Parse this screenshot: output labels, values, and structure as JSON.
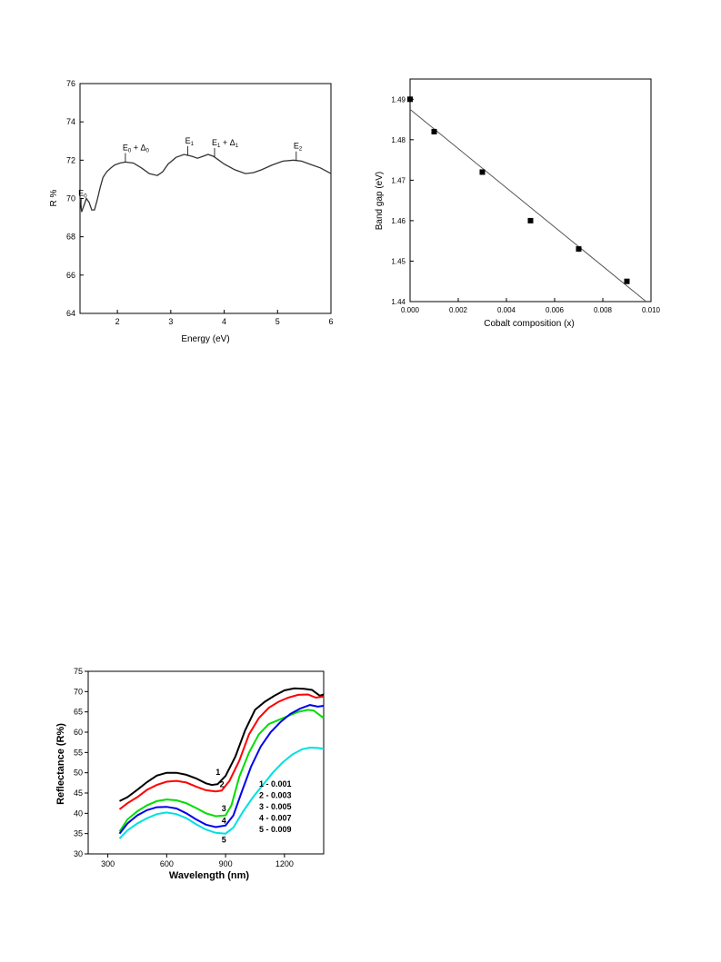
{
  "chart_data": [
    {
      "type": "line",
      "xlabel": "Energy (eV)",
      "ylabel": "R %",
      "xlim": [
        1.3,
        6
      ],
      "ylim": [
        64,
        76
      ],
      "xticks": [
        2,
        3,
        4,
        5,
        6
      ],
      "yticks": [
        64,
        66,
        68,
        70,
        72,
        74,
        76
      ],
      "grid": false,
      "series": [
        {
          "x": [
            1.3,
            1.33,
            1.37,
            1.42,
            1.47,
            1.52,
            1.57,
            1.62,
            1.68,
            1.73,
            1.8,
            1.88,
            1.95,
            2.05,
            2.15,
            2.3,
            2.45,
            2.6,
            2.75,
            2.85,
            2.95,
            3.1,
            3.25,
            3.4,
            3.5,
            3.6,
            3.7,
            3.8,
            3.9,
            4.0,
            4.2,
            4.4,
            4.55,
            4.7,
            4.9,
            5.1,
            5.3,
            5.45,
            5.6,
            5.8,
            6.0
          ],
          "values": [
            70.0,
            69.3,
            69.6,
            70.0,
            69.8,
            69.4,
            69.4,
            69.9,
            70.6,
            71.1,
            71.4,
            71.6,
            71.75,
            71.85,
            71.9,
            71.85,
            71.6,
            71.3,
            71.2,
            71.4,
            71.8,
            72.15,
            72.3,
            72.2,
            72.1,
            72.2,
            72.3,
            72.2,
            72.0,
            71.8,
            71.5,
            71.3,
            71.35,
            71.5,
            71.75,
            71.95,
            72.0,
            71.95,
            71.8,
            71.6,
            71.3
          ]
        }
      ],
      "annotations": [
        {
          "main": "E",
          "sub": "0",
          "x": 1.32
        },
        {
          "main": "E",
          "sub": "0",
          "suffix": " + Δ",
          "sub2": "0",
          "x": 2.15
        },
        {
          "main": "E",
          "sub": "1",
          "x": 3.32
        },
        {
          "main": "E",
          "sub": "1",
          "suffix": " + Δ",
          "sub2": "1",
          "x": 3.82
        },
        {
          "main": "E",
          "sub": "2",
          "x": 5.35
        }
      ]
    },
    {
      "type": "scatter",
      "xlabel": "Cobalt composition (x)",
      "ylabel": "Band gap (eV)",
      "xlim": [
        0,
        0.01
      ],
      "ylim": [
        1.44,
        1.495
      ],
      "xticks": [
        "0.000",
        "0.002",
        "0.004",
        "0.006",
        "0.008",
        "0.010"
      ],
      "yticks": [
        "1.44",
        "1.45",
        "1.46",
        "1.47",
        "1.48",
        "1.49"
      ],
      "grid": false,
      "points": [
        {
          "x": 0.0,
          "y": 1.49
        },
        {
          "x": 0.001,
          "y": 1.482
        },
        {
          "x": 0.003,
          "y": 1.472
        },
        {
          "x": 0.005,
          "y": 1.46
        },
        {
          "x": 0.007,
          "y": 1.453
        },
        {
          "x": 0.009,
          "y": 1.445
        }
      ],
      "fit": {
        "x": [
          0.0,
          0.0098
        ],
        "y": [
          1.4875,
          1.44
        ]
      }
    },
    {
      "type": "line",
      "xlabel": "Wavelength (nm)",
      "ylabel": "Reflectance (R%)",
      "xlim": [
        200,
        1400
      ],
      "ylim": [
        30,
        75
      ],
      "xticks": [
        300,
        600,
        900,
        1200
      ],
      "yticks": [
        30,
        35,
        40,
        45,
        50,
        55,
        60,
        65,
        70,
        75
      ],
      "grid": false,
      "legend": {
        "placement": "right",
        "entries": [
          "1 -  0.001",
          "2 -  0.003",
          "3 -  0.005",
          "4 -  0.007",
          "5 -  0.009"
        ]
      },
      "series": [
        {
          "name": "1",
          "color": "#000000",
          "label_point": [
            850,
            49.5
          ],
          "x": [
            360,
            400,
            450,
            500,
            550,
            600,
            650,
            700,
            750,
            800,
            830,
            860,
            900,
            950,
            1000,
            1050,
            1100,
            1150,
            1200,
            1250,
            1300,
            1340,
            1380,
            1400
          ],
          "values": [
            43,
            44,
            45.8,
            47.7,
            49.3,
            50,
            50,
            49.5,
            48.6,
            47.4,
            47,
            47.2,
            49.2,
            54,
            60.5,
            65.5,
            67.5,
            69,
            70.3,
            70.8,
            70.7,
            70.4,
            69,
            69.3
          ]
        },
        {
          "name": "2",
          "color": "#ff0000",
          "label_point": [
            870,
            46.5
          ],
          "x": [
            360,
            400,
            450,
            500,
            550,
            600,
            650,
            700,
            750,
            800,
            850,
            880,
            920,
            970,
            1020,
            1070,
            1120,
            1170,
            1220,
            1270,
            1320,
            1360,
            1400
          ],
          "values": [
            41,
            42.5,
            44,
            45.8,
            47,
            47.8,
            48,
            47.6,
            46.6,
            45.7,
            45.4,
            45.6,
            48,
            53,
            59.5,
            63.5,
            66,
            67.5,
            68.5,
            69.2,
            69.3,
            68.5,
            68.8
          ]
        },
        {
          "name": "3",
          "color": "#00dd00",
          "label_point": [
            880,
            40.5
          ],
          "x": [
            360,
            400,
            450,
            500,
            550,
            600,
            650,
            700,
            750,
            800,
            850,
            900,
            930,
            970,
            1020,
            1070,
            1120,
            1170,
            1220,
            1270,
            1320,
            1350,
            1400
          ],
          "values": [
            35.5,
            38.5,
            40.5,
            42,
            43,
            43.4,
            43.2,
            42.5,
            41.3,
            40,
            39.3,
            39.5,
            42,
            49,
            55,
            59.5,
            62,
            63,
            64,
            65,
            65.5,
            65.3,
            63.5
          ]
        },
        {
          "name": "4",
          "color": "#0000ee",
          "label_point": [
            880,
            37.5
          ],
          "x": [
            360,
            400,
            450,
            500,
            550,
            600,
            650,
            700,
            750,
            800,
            850,
            900,
            940,
            980,
            1030,
            1080,
            1130,
            1180,
            1230,
            1280,
            1330,
            1370,
            1400
          ],
          "values": [
            35,
            37.5,
            39.5,
            40.8,
            41.5,
            41.6,
            41.2,
            40,
            38.5,
            37.2,
            36.6,
            37,
            39.5,
            45,
            51.5,
            56.5,
            60,
            62.5,
            64.5,
            65.8,
            66.7,
            66.3,
            66.5
          ]
        },
        {
          "name": "5",
          "color": "#00e0e0",
          "label_point": [
            880,
            32.8
          ],
          "x": [
            360,
            400,
            450,
            500,
            550,
            600,
            650,
            700,
            750,
            800,
            850,
            900,
            940,
            990,
            1040,
            1090,
            1140,
            1190,
            1240,
            1290,
            1330,
            1370,
            1400
          ],
          "values": [
            33.8,
            35.8,
            37.5,
            38.8,
            39.8,
            40.2,
            39.8,
            38.8,
            37.3,
            36,
            35.2,
            35,
            36.5,
            40.5,
            44,
            47,
            50,
            52.5,
            54.5,
            55.8,
            56.2,
            56.1,
            55.9
          ]
        }
      ]
    }
  ]
}
